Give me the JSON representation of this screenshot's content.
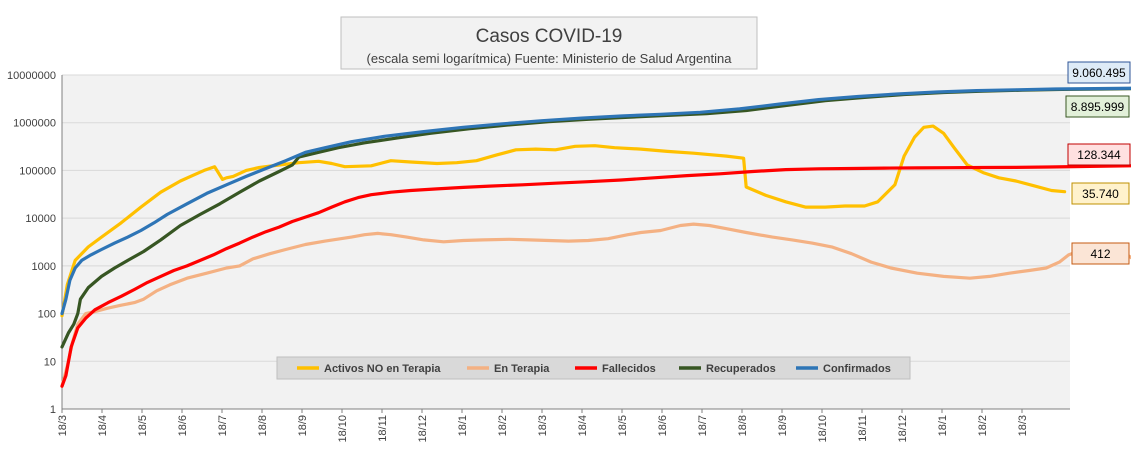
{
  "chart_data": {
    "type": "line",
    "title": "Casos COVID-19",
    "subtitle": "(escala semi logarítmica) Fuente: Ministerio de Salud  Argentina",
    "y_scale": "log",
    "ylim": [
      1,
      10000000
    ],
    "y_ticks": [
      "1",
      "10",
      "100",
      "1000",
      "10000",
      "100000",
      "1000000",
      "10000000"
    ],
    "x_ticks": [
      "18/3",
      "18/4",
      "18/5",
      "18/6",
      "18/7",
      "18/8",
      "18/9",
      "18/10",
      "18/11",
      "18/12",
      "18/1",
      "18/2",
      "18/3",
      "18/4",
      "18/5",
      "18/6",
      "18/7",
      "18/8",
      "18/9",
      "18/10",
      "18/11",
      "18/12",
      "18/1",
      "18/2",
      "18/3"
    ],
    "grid": true,
    "legend_position": "bottom-center",
    "series": [
      {
        "name": "Activos NO en Terapia",
        "color": "#FFC000",
        "end_label": "35.740",
        "end_label_bg": "#FFF2CC",
        "end_label_border": "#BF9000",
        "points": [
          [
            0,
            90
          ],
          [
            4,
            400
          ],
          [
            10,
            1300
          ],
          [
            20,
            2500
          ],
          [
            30,
            4000
          ],
          [
            45,
            8000
          ],
          [
            60,
            17000
          ],
          [
            75,
            35000
          ],
          [
            90,
            60000
          ],
          [
            100,
            80000
          ],
          [
            108,
            100000
          ],
          [
            116,
            120000
          ],
          [
            122,
            65000
          ],
          [
            125,
            70000
          ],
          [
            130,
            75000
          ],
          [
            140,
            100000
          ],
          [
            150,
            115000
          ],
          [
            165,
            130000
          ],
          [
            180,
            145000
          ],
          [
            195,
            155000
          ],
          [
            205,
            140000
          ],
          [
            215,
            120000
          ],
          [
            235,
            125000
          ],
          [
            250,
            160000
          ],
          [
            265,
            150000
          ],
          [
            285,
            140000
          ],
          [
            300,
            145000
          ],
          [
            315,
            160000
          ],
          [
            330,
            210000
          ],
          [
            345,
            270000
          ],
          [
            360,
            280000
          ],
          [
            375,
            270000
          ],
          [
            390,
            320000
          ],
          [
            405,
            330000
          ],
          [
            420,
            300000
          ],
          [
            440,
            280000
          ],
          [
            460,
            250000
          ],
          [
            480,
            230000
          ],
          [
            505,
            200000
          ],
          [
            518,
            180000
          ],
          [
            520,
            45000
          ],
          [
            535,
            30000
          ],
          [
            550,
            22000
          ],
          [
            565,
            17000
          ],
          [
            580,
            17000
          ],
          [
            595,
            18000
          ],
          [
            610,
            18000
          ],
          [
            620,
            22000
          ],
          [
            633,
            50000
          ],
          [
            640,
            200000
          ],
          [
            648,
            500000
          ],
          [
            655,
            800000
          ],
          [
            662,
            850000
          ],
          [
            670,
            600000
          ],
          [
            678,
            300000
          ],
          [
            688,
            130000
          ],
          [
            700,
            90000
          ],
          [
            712,
            70000
          ],
          [
            725,
            60000
          ],
          [
            738,
            48000
          ],
          [
            752,
            38000
          ],
          [
            762,
            35740
          ]
        ]
      },
      {
        "name": "En Terapia",
        "color": "#F4B183",
        "end_label": "412",
        "end_label_bg": "#FBE5D6",
        "end_label_border": "#C55A11",
        "points": [
          [
            0,
            3
          ],
          [
            4,
            8
          ],
          [
            8,
            25
          ],
          [
            12,
            60
          ],
          [
            18,
            100
          ],
          [
            25,
            110
          ],
          [
            35,
            130
          ],
          [
            45,
            150
          ],
          [
            55,
            170
          ],
          [
            62,
            200
          ],
          [
            72,
            300
          ],
          [
            82,
            400
          ],
          [
            95,
            550
          ],
          [
            110,
            700
          ],
          [
            125,
            900
          ],
          [
            135,
            1000
          ],
          [
            145,
            1400
          ],
          [
            158,
            1800
          ],
          [
            170,
            2200
          ],
          [
            185,
            2800
          ],
          [
            200,
            3300
          ],
          [
            220,
            4000
          ],
          [
            230,
            4500
          ],
          [
            240,
            4800
          ],
          [
            250,
            4500
          ],
          [
            262,
            4000
          ],
          [
            275,
            3500
          ],
          [
            290,
            3200
          ],
          [
            305,
            3400
          ],
          [
            320,
            3500
          ],
          [
            340,
            3600
          ],
          [
            355,
            3500
          ],
          [
            370,
            3400
          ],
          [
            385,
            3300
          ],
          [
            400,
            3400
          ],
          [
            415,
            3700
          ],
          [
            430,
            4500
          ],
          [
            440,
            5000
          ],
          [
            455,
            5500
          ],
          [
            470,
            7000
          ],
          [
            480,
            7500
          ],
          [
            492,
            7000
          ],
          [
            505,
            6000
          ],
          [
            520,
            5000
          ],
          [
            540,
            4000
          ],
          [
            555,
            3500
          ],
          [
            570,
            3000
          ],
          [
            585,
            2500
          ],
          [
            600,
            1800
          ],
          [
            615,
            1200
          ],
          [
            630,
            900
          ],
          [
            650,
            700
          ],
          [
            670,
            600
          ],
          [
            690,
            550
          ],
          [
            705,
            600
          ],
          [
            720,
            700
          ],
          [
            735,
            800
          ],
          [
            748,
            900
          ],
          [
            758,
            1200
          ],
          [
            765,
            1700
          ],
          [
            772,
            2000
          ],
          [
            780,
            2300
          ],
          [
            790,
            2800
          ],
          [
            798,
            2500
          ],
          [
            808,
            1800
          ],
          [
            818,
            1200
          ],
          [
            830,
            900
          ],
          [
            845,
            700
          ],
          [
            858,
            550
          ],
          [
            870,
            450
          ],
          [
            882,
            412
          ]
        ]
      },
      {
        "name": "Fallecidos",
        "color": "#FF0000",
        "end_label": "128.344",
        "end_label_bg": "#FFE0E0",
        "end_label_border": "#C00000",
        "points": [
          [
            0,
            3
          ],
          [
            3,
            5
          ],
          [
            7,
            20
          ],
          [
            12,
            50
          ],
          [
            18,
            80
          ],
          [
            25,
            120
          ],
          [
            35,
            170
          ],
          [
            45,
            230
          ],
          [
            55,
            320
          ],
          [
            65,
            450
          ],
          [
            75,
            600
          ],
          [
            85,
            800
          ],
          [
            95,
            1000
          ],
          [
            105,
            1300
          ],
          [
            115,
            1700
          ],
          [
            125,
            2300
          ],
          [
            135,
            3000
          ],
          [
            145,
            4000
          ],
          [
            155,
            5200
          ],
          [
            165,
            6500
          ],
          [
            175,
            8500
          ],
          [
            185,
            10500
          ],
          [
            195,
            13000
          ],
          [
            205,
            17000
          ],
          [
            215,
            22000
          ],
          [
            225,
            27000
          ],
          [
            235,
            31000
          ],
          [
            250,
            35000
          ],
          [
            265,
            38000
          ],
          [
            285,
            41000
          ],
          [
            305,
            44000
          ],
          [
            325,
            47000
          ],
          [
            350,
            50000
          ],
          [
            375,
            54000
          ],
          [
            400,
            58000
          ],
          [
            425,
            63000
          ],
          [
            450,
            70000
          ],
          [
            475,
            78000
          ],
          [
            500,
            85000
          ],
          [
            525,
            95000
          ],
          [
            550,
            104000
          ],
          [
            575,
            108000
          ],
          [
            600,
            110000
          ],
          [
            625,
            112000
          ],
          [
            650,
            113000
          ],
          [
            675,
            114000
          ],
          [
            700,
            115000
          ],
          [
            725,
            116000
          ],
          [
            750,
            118000
          ],
          [
            775,
            121000
          ],
          [
            800,
            124000
          ],
          [
            830,
            126000
          ],
          [
            860,
            127500
          ],
          [
            882,
            128344
          ]
        ]
      },
      {
        "name": "Recuperados",
        "color": "#375623",
        "end_label": "8.895.999",
        "end_label_bg": "#E2F0D9",
        "end_label_border": "#385723",
        "points": [
          [
            0,
            20
          ],
          [
            5,
            40
          ],
          [
            9,
            60
          ],
          [
            12,
            100
          ],
          [
            14,
            200
          ],
          [
            20,
            350
          ],
          [
            30,
            600
          ],
          [
            40,
            900
          ],
          [
            50,
            1300
          ],
          [
            62,
            2000
          ],
          [
            75,
            3500
          ],
          [
            90,
            7000
          ],
          [
            105,
            12000
          ],
          [
            120,
            20000
          ],
          [
            135,
            35000
          ],
          [
            150,
            60000
          ],
          [
            165,
            95000
          ],
          [
            175,
            130000
          ],
          [
            176,
            140000
          ],
          [
            180,
            190000
          ],
          [
            195,
            240000
          ],
          [
            210,
            300000
          ],
          [
            230,
            380000
          ],
          [
            255,
            480000
          ],
          [
            280,
            600000
          ],
          [
            310,
            750000
          ],
          [
            340,
            900000
          ],
          [
            370,
            1050000
          ],
          [
            400,
            1180000
          ],
          [
            430,
            1300000
          ],
          [
            460,
            1420000
          ],
          [
            490,
            1550000
          ],
          [
            520,
            1800000
          ],
          [
            550,
            2300000
          ],
          [
            580,
            2900000
          ],
          [
            610,
            3400000
          ],
          [
            640,
            3900000
          ],
          [
            670,
            4300000
          ],
          [
            700,
            4600000
          ],
          [
            730,
            4800000
          ],
          [
            760,
            5000000
          ],
          [
            790,
            5100000
          ],
          [
            820,
            5200000
          ],
          [
            850,
            5250000
          ],
          [
            880,
            5300000
          ],
          [
            900,
            5350000
          ],
          [
            915,
            5800000
          ],
          [
            930,
            6800000
          ],
          [
            945,
            8100000
          ],
          [
            960,
            8500000
          ],
          [
            990,
            8650000
          ],
          [
            1010,
            8700000
          ],
          [
            1030,
            8800000
          ],
          [
            1050,
            8850000
          ],
          [
            1070,
            8895999
          ]
        ]
      },
      {
        "name": "Confirmados",
        "color": "#2E75B6",
        "end_label": "9.060.495",
        "end_label_bg": "#DEEBF7",
        "end_label_border": "#2F5597",
        "points": [
          [
            0,
            100
          ],
          [
            3,
            200
          ],
          [
            6,
            500
          ],
          [
            10,
            900
          ],
          [
            15,
            1300
          ],
          [
            22,
            1700
          ],
          [
            30,
            2200
          ],
          [
            40,
            3000
          ],
          [
            50,
            4000
          ],
          [
            60,
            5500
          ],
          [
            70,
            8000
          ],
          [
            80,
            12000
          ],
          [
            95,
            20000
          ],
          [
            110,
            33000
          ],
          [
            125,
            50000
          ],
          [
            140,
            75000
          ],
          [
            155,
            110000
          ],
          [
            170,
            160000
          ],
          [
            185,
            240000
          ],
          [
            200,
            300000
          ],
          [
            220,
            400000
          ],
          [
            245,
            520000
          ],
          [
            275,
            650000
          ],
          [
            305,
            800000
          ],
          [
            335,
            950000
          ],
          [
            365,
            1100000
          ],
          [
            395,
            1250000
          ],
          [
            425,
            1380000
          ],
          [
            455,
            1500000
          ],
          [
            485,
            1650000
          ],
          [
            515,
            1950000
          ],
          [
            545,
            2450000
          ],
          [
            575,
            3050000
          ],
          [
            605,
            3550000
          ],
          [
            635,
            4000000
          ],
          [
            665,
            4400000
          ],
          [
            695,
            4700000
          ],
          [
            725,
            4900000
          ],
          [
            755,
            5100000
          ],
          [
            785,
            5200000
          ],
          [
            815,
            5280000
          ],
          [
            845,
            5330000
          ],
          [
            875,
            5380000
          ],
          [
            905,
            5450000
          ],
          [
            925,
            6400000
          ],
          [
            940,
            7800000
          ],
          [
            955,
            8700000
          ],
          [
            975,
            8900000
          ],
          [
            1000,
            8950000
          ],
          [
            1030,
            9000000
          ],
          [
            1070,
            9060495
          ]
        ]
      }
    ]
  }
}
